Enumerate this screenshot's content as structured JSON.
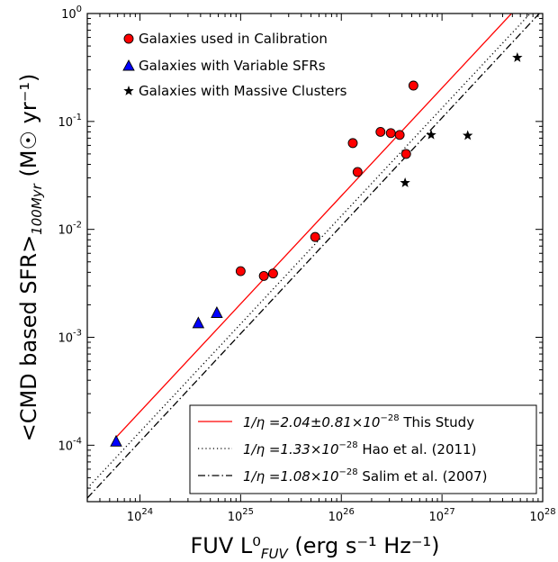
{
  "chart_data": {
    "type": "scatter",
    "title": "",
    "xlabel": "FUV L⁰",
    "xlabel_sub": "FUV",
    "xlabel_units": " (erg s⁻¹  Hz⁻¹)",
    "ylabel": "<CMD based SFR>",
    "ylabel_sub": "100Myr",
    "ylabel_units": "  (M☉ yr⁻¹)",
    "x_scale": "log",
    "y_scale": "log",
    "xlim": [
      3e+23,
      1e+28
    ],
    "ylim": [
      3e-05,
      1
    ],
    "x_ticks": [
      {
        "value": 1e+24,
        "base": "10",
        "exp": "24"
      },
      {
        "value": 1e+25,
        "base": "10",
        "exp": "25"
      },
      {
        "value": 1e+26,
        "base": "10",
        "exp": "26"
      },
      {
        "value": 1e+27,
        "base": "10",
        "exp": "27"
      },
      {
        "value": 1e+28,
        "base": "10",
        "exp": "28"
      }
    ],
    "y_ticks": [
      {
        "value": 0.0001,
        "base": "10",
        "exp": "-4"
      },
      {
        "value": 0.001,
        "base": "10",
        "exp": "-3"
      },
      {
        "value": 0.01,
        "base": "10",
        "exp": "-2"
      },
      {
        "value": 0.1,
        "base": "10",
        "exp": "-1"
      },
      {
        "value": 1,
        "base": "10",
        "exp": "0"
      }
    ],
    "series": [
      {
        "name": "Galaxies used in Calibration",
        "marker": "circle",
        "color": "#ff0000",
        "points": [
          [
            1e+25,
            0.0041
          ],
          [
            1.7e+25,
            0.0037
          ],
          [
            2.1e+25,
            0.0039
          ],
          [
            5.5e+25,
            0.0085
          ],
          [
            1.3e+26,
            0.063
          ],
          [
            1.45e+26,
            0.034
          ],
          [
            2.45e+26,
            0.08
          ],
          [
            3.1e+26,
            0.078
          ],
          [
            3.8e+26,
            0.075
          ],
          [
            4.4e+26,
            0.05
          ],
          [
            5.2e+26,
            0.215
          ]
        ]
      },
      {
        "name": "Galaxies with Variable SFRs",
        "marker": "triangle",
        "color": "#0000ff",
        "points": [
          [
            5.8e+23,
            0.000108
          ],
          [
            3.8e+24,
            0.00135
          ],
          [
            5.8e+24,
            0.00168
          ]
        ]
      },
      {
        "name": "Galaxies with Massive Clusters",
        "marker": "star",
        "color": "#000000",
        "points": [
          [
            4.3e+26,
            0.027
          ],
          [
            7.8e+26,
            0.075
          ],
          [
            1.8e+27,
            0.074
          ],
          [
            5.6e+27,
            0.39
          ]
        ]
      }
    ],
    "lines": [
      {
        "label_symbol": "1/η",
        "label_value": " =2.04±0.81×10",
        "label_exp": "−28",
        "label_tail": " This Study",
        "coef": 2.04e-28,
        "style": "solid",
        "color": "#ff0000",
        "x_range": [
          5.8e+23,
          1e+28
        ]
      },
      {
        "label_symbol": "1/η",
        "label_value": " =1.33×10",
        "label_exp": "−28",
        "label_tail": " Hao et al. (2011)",
        "coef": 1.33e-28,
        "style": "dotted",
        "color": "#000000",
        "x_range": [
          3e+23,
          1e+28
        ]
      },
      {
        "label_symbol": "1/η",
        "label_value": " =1.08×10",
        "label_exp": "−28",
        "label_tail": " Salim et al. (2007)",
        "coef": 1.08e-28,
        "style": "dashdot",
        "color": "#000000",
        "x_range": [
          3e+23,
          1e+28
        ]
      }
    ],
    "legend_upper_placement": "top-left",
    "legend_lower_placement": "bottom-right",
    "grid": false
  }
}
